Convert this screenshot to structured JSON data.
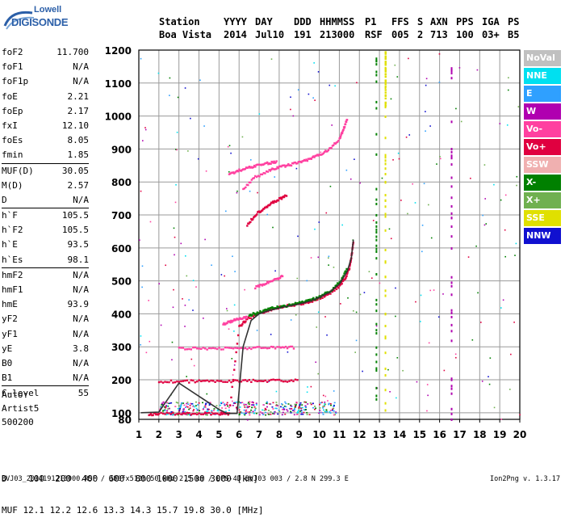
{
  "logo": {
    "line1": "Lowell",
    "line2": "DIGISONDE"
  },
  "header": {
    "row1": [
      "Station",
      "YYYY",
      "DAY",
      "DDD",
      "HHMMSS",
      "P1",
      "FFS",
      "S",
      "AXN",
      "PPS",
      "IGA",
      "PS"
    ],
    "row2": [
      "Boa Vista",
      "2014",
      "Jul10",
      "191",
      "213000",
      "RSF",
      "005",
      "2",
      "713",
      "100",
      "03+",
      "B5"
    ]
  },
  "params": [
    {
      "name": "foF2",
      "value": "11.700"
    },
    {
      "name": "foF1",
      "value": "N/A"
    },
    {
      "name": "foF1p",
      "value": "N/A"
    },
    {
      "name": "foE",
      "value": "2.21"
    },
    {
      "name": "foEp",
      "value": "2.17"
    },
    {
      "name": "fxI",
      "value": "12.10"
    },
    {
      "name": "foEs",
      "value": "8.05"
    },
    {
      "name": "fmin",
      "value": "1.85"
    },
    {
      "sep": true
    },
    {
      "name": "MUF(D)",
      "value": "30.05"
    },
    {
      "name": "M(D)",
      "value": "2.57"
    },
    {
      "name": "D",
      "value": "N/A"
    },
    {
      "sep": true
    },
    {
      "name": "h`F",
      "value": "105.5"
    },
    {
      "name": "h`F2",
      "value": "105.5"
    },
    {
      "name": "h`E",
      "value": "93.5"
    },
    {
      "name": "h`Es",
      "value": "98.1"
    },
    {
      "sep": true
    },
    {
      "name": "hmF2",
      "value": "N/A"
    },
    {
      "name": "hmF1",
      "value": "N/A"
    },
    {
      "name": "hmE",
      "value": "93.9"
    },
    {
      "name": "yF2",
      "value": "N/A"
    },
    {
      "name": "yF1",
      "value": "N/A"
    },
    {
      "name": "yE",
      "value": "3.8"
    },
    {
      "name": "B0",
      "value": "N/A"
    },
    {
      "name": "B1",
      "value": "N/A"
    },
    {
      "sep": true
    },
    {
      "name": "C-level",
      "value": "55"
    }
  ],
  "auto": {
    "line1": "Auto:",
    "line2": "Artist5",
    "line3": "500200"
  },
  "legend": [
    {
      "label": "NoVal",
      "color": "#c0c0c0"
    },
    {
      "label": "NNE",
      "color": "#00e0f0"
    },
    {
      "label": "E",
      "color": "#2fa0ff"
    },
    {
      "label": "W",
      "color": "#b000b0"
    },
    {
      "label": "Vo-",
      "color": "#ff40a0"
    },
    {
      "label": "Vo+",
      "color": "#e00040"
    },
    {
      "label": "SSW",
      "color": "#f0b0b0"
    },
    {
      "label": "X-",
      "color": "#008000"
    },
    {
      "label": "X+",
      "color": "#70b050"
    },
    {
      "label": "SSE",
      "color": "#e0e000"
    },
    {
      "label": "NNW",
      "color": "#1010d0"
    }
  ],
  "bottom": {
    "row1_label": "D",
    "row1_values": [
      "100",
      "200",
      "400",
      "600",
      "800",
      "1000",
      "1500",
      "3000"
    ],
    "row1_unit": "[km]",
    "row2_label": "MUF",
    "row2_values": [
      "12.1",
      "12.2",
      "12.6",
      "13.3",
      "14.3",
      "15.7",
      "19.8",
      "30.0"
    ],
    "row2_unit": "[MHz]"
  },
  "footer": "BVJ03_2014191213000.RSF / 380fx512h 50 kHz 2.5 km / DPS-4D BVJ03 003 / 2.8 N 299.3 E",
  "version": "Ion2Png v. 1.3.17",
  "chart_data": {
    "type": "scatter",
    "xlim": [
      1,
      20
    ],
    "ylim": [
      80,
      1200
    ],
    "x_ticks": [
      1,
      2,
      3,
      4,
      5,
      6,
      7,
      8,
      9,
      10,
      11,
      12,
      13,
      14,
      15,
      16,
      17,
      18,
      19,
      20
    ],
    "y_ticks": [
      80,
      100,
      200,
      300,
      400,
      500,
      600,
      700,
      800,
      900,
      1000,
      1100,
      1200
    ],
    "grid": true,
    "legend_position": "right",
    "profile_curve": {
      "name": "profile",
      "x": [
        1.1,
        2.0,
        3.0,
        4.0,
        5.0,
        5.4,
        5.9,
        6.2,
        6.6,
        7.0,
        7.5,
        8.0,
        8.5,
        9.0,
        9.5,
        10.0,
        10.5,
        11.0,
        11.4,
        11.6,
        11.7
      ],
      "y": [
        100,
        102,
        190,
        150,
        110,
        98,
        98,
        300,
        380,
        400,
        410,
        418,
        424,
        430,
        438,
        450,
        465,
        490,
        530,
        570,
        625
      ]
    },
    "traces": [
      {
        "series": "Vo+",
        "x": [
          1.5,
          2,
          3,
          4,
          5,
          5.5,
          6,
          6.4,
          7,
          7.5,
          8,
          8.5,
          9,
          9.5,
          10,
          10.5,
          11,
          11.3,
          11.5,
          11.6,
          11.7
        ],
        "y": [
          96,
          97,
          98,
          98,
          98,
          98,
          360,
          385,
          403,
          412,
          420,
          425,
          430,
          437,
          447,
          462,
          485,
          510,
          540,
          575,
          620
        ]
      },
      {
        "series": "X-",
        "x": [
          6.5,
          7,
          7.5,
          8,
          8.5,
          9,
          9.5,
          10,
          10.5,
          11,
          11.4
        ],
        "y": [
          395,
          406,
          415,
          421,
          427,
          433,
          440,
          452,
          468,
          495,
          540
        ]
      },
      {
        "series": "Vo-",
        "x": [
          6.2,
          6.8,
          7.5,
          8,
          8.5,
          9,
          9.5,
          10,
          10.5,
          11,
          11.2,
          11.4
        ],
        "y": [
          780,
          815,
          835,
          845,
          852,
          860,
          870,
          882,
          900,
          930,
          960,
          995
        ]
      },
      {
        "series": "Vo-",
        "x": [
          5.5,
          6,
          6.5,
          7,
          7.5,
          7.9
        ],
        "y": [
          825,
          835,
          845,
          852,
          858,
          862
        ]
      },
      {
        "series": "Vo+",
        "x": [
          6.4,
          6.8,
          7.2,
          7.6,
          8.0,
          8.4
        ],
        "y": [
          670,
          700,
          720,
          735,
          748,
          760
        ]
      },
      {
        "series": "Vo-",
        "x": [
          6.8,
          7.3,
          7.8,
          8.2
        ],
        "y": [
          480,
          492,
          505,
          515
        ]
      },
      {
        "series": "Vo-",
        "x": [
          5.2,
          5.6,
          6.0,
          6.4
        ],
        "y": [
          370,
          378,
          385,
          390
        ]
      },
      {
        "series": "Vo-",
        "x": [
          3.0,
          4.0,
          5.0,
          6.0,
          7.0,
          8.0,
          8.8
        ],
        "y": [
          295,
          295,
          296,
          296,
          297,
          298,
          298
        ]
      },
      {
        "series": "Vo+",
        "x": [
          2.0,
          3.0,
          4.0,
          5.0,
          6.0,
          7.0,
          8.0,
          9.0
        ],
        "y": [
          195,
          195,
          196,
          196,
          197,
          197,
          198,
          198
        ]
      },
      {
        "series": "SSE",
        "x": [
          13.3,
          13.3,
          13.3,
          13.3
        ],
        "y": [
          1030,
          1100,
          1160,
          1200
        ]
      }
    ]
  }
}
